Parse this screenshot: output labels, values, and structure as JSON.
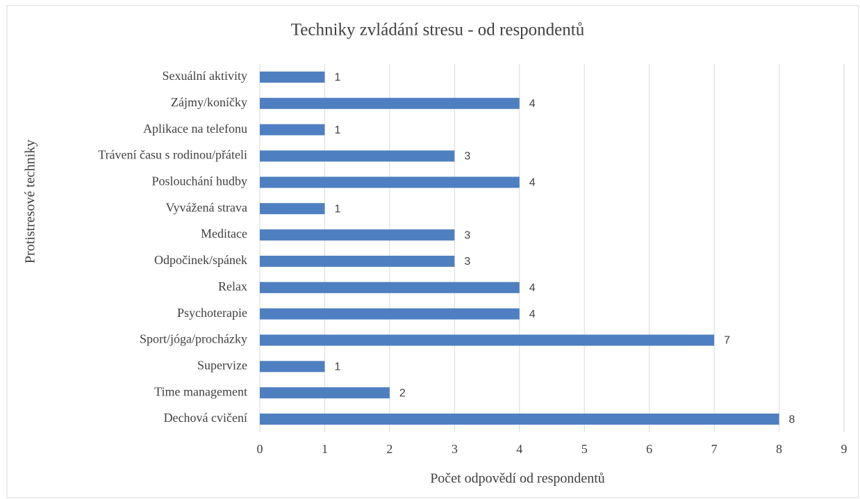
{
  "chart_data": {
    "type": "bar",
    "orientation": "horizontal",
    "title": "Techniky zvládání stresu - od respondentů",
    "x_label": "Počet odpovědí od respondentů",
    "y_label": "Protistresové techniky",
    "categories": [
      "Sexuální aktivity",
      "Zájmy/koníčky",
      "Aplikace na telefonu",
      "Trávení času s rodinou/přáteli",
      "Poslouchání hudby",
      "Vyvážená strava",
      "Meditace",
      "Odpočinek/spánek",
      "Relax",
      "Psychoterapie",
      "Sport/jóga/procházky",
      "Supervize",
      "Time management",
      "Dechová cvičení"
    ],
    "values": [
      1,
      4,
      1,
      3,
      4,
      1,
      3,
      3,
      4,
      4,
      7,
      1,
      2,
      8
    ],
    "color": "#4e7fc0",
    "xlim": [
      0,
      9
    ],
    "xticks": [
      0,
      1,
      2,
      3,
      4,
      5,
      6,
      7,
      8,
      9
    ],
    "grid": true
  }
}
